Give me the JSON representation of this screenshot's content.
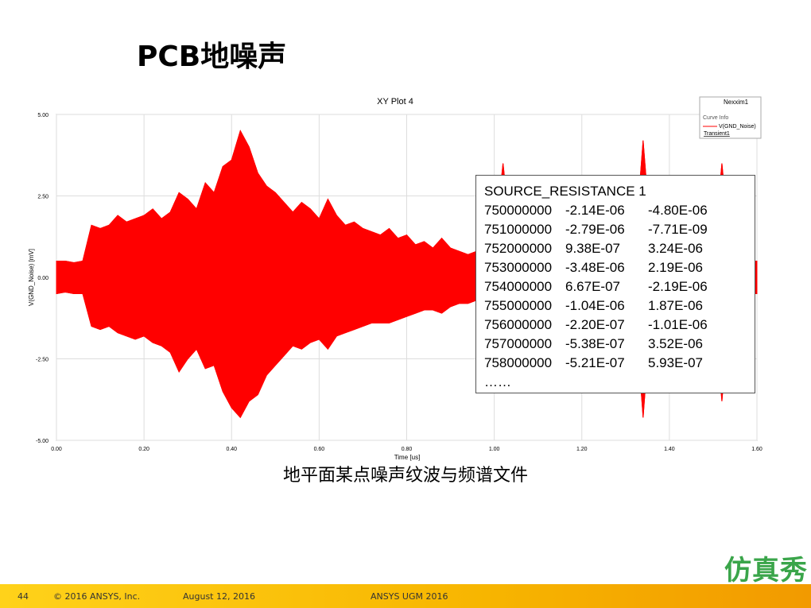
{
  "header": {
    "title": "PCB地噪声"
  },
  "chart_data": {
    "type": "area",
    "title": "XY Plot 4",
    "x_label": "Time [us]",
    "y_label": "V(GND_Noise) [mV]",
    "legend": {
      "title": "Nexxim1",
      "subtitle": "Curve Info",
      "solution": "Transient1"
    },
    "xlim": [
      0,
      1.6
    ],
    "ylim": [
      -5,
      5
    ],
    "xticks": [
      {
        "value": 0,
        "label": "0.00"
      },
      {
        "value": 0.2,
        "label": "0.20"
      },
      {
        "value": 0.4,
        "label": "0.40"
      },
      {
        "value": 0.6,
        "label": "0.60"
      },
      {
        "value": 0.8,
        "label": "0.80"
      },
      {
        "value": 1,
        "label": "1.00"
      },
      {
        "value": 1.2,
        "label": "1.20"
      },
      {
        "value": 1.4,
        "label": "1.40"
      },
      {
        "value": 1.6,
        "label": "1.60"
      }
    ],
    "yticks": [
      {
        "value": 5,
        "label": "5.00"
      },
      {
        "value": 2.5,
        "label": "2.50"
      },
      {
        "value": 0,
        "label": "0.00"
      },
      {
        "value": -2.5,
        "label": "-2.50"
      },
      {
        "value": -5,
        "label": "-5.00"
      }
    ],
    "grid": true,
    "x": [
      0,
      0.02,
      0.04,
      0.06,
      0.08,
      0.1,
      0.12,
      0.14,
      0.16,
      0.18,
      0.2,
      0.22,
      0.24,
      0.26,
      0.28,
      0.3,
      0.32,
      0.34,
      0.36,
      0.38,
      0.4,
      0.42,
      0.44,
      0.46,
      0.48,
      0.5,
      0.52,
      0.54,
      0.56,
      0.58,
      0.6,
      0.62,
      0.64,
      0.66,
      0.68,
      0.7,
      0.72,
      0.74,
      0.76,
      0.78,
      0.8,
      0.82,
      0.84,
      0.86,
      0.88,
      0.9,
      0.92,
      0.94,
      0.96,
      0.98,
      1,
      1.02,
      1.04,
      1.06,
      1.08,
      1.1,
      1.12,
      1.14,
      1.16,
      1.18,
      1.2,
      1.22,
      1.24,
      1.26,
      1.28,
      1.3,
      1.32,
      1.34,
      1.36,
      1.38,
      1.4,
      1.42,
      1.44,
      1.46,
      1.48,
      1.5,
      1.52,
      1.54,
      1.56,
      1.58,
      1.6
    ],
    "series": [
      {
        "name": "V(GND_Noise)",
        "color": "#ff0000",
        "high": [
          0.5,
          0.5,
          0.45,
          0.5,
          1.6,
          1.5,
          1.6,
          1.9,
          1.7,
          1.8,
          1.9,
          2.1,
          1.8,
          2.0,
          2.6,
          2.4,
          2.1,
          2.9,
          2.6,
          3.4,
          3.6,
          4.5,
          4.0,
          3.2,
          2.8,
          2.6,
          2.3,
          2.0,
          2.3,
          2.1,
          1.8,
          2.4,
          1.9,
          1.6,
          1.7,
          1.5,
          1.4,
          1.3,
          1.5,
          1.2,
          1.3,
          1.0,
          1.1,
          0.9,
          1.2,
          0.9,
          0.8,
          0.7,
          0.8,
          0.7,
          0.9,
          3.5,
          1.0,
          0.8,
          0.7,
          0.6,
          1.0,
          0.8,
          0.7,
          0.6,
          0.6,
          0.7,
          0.6,
          0.5,
          0.6,
          0.5,
          0.7,
          4.2,
          0.8,
          0.7,
          0.6,
          0.5,
          0.6,
          0.5,
          0.5,
          0.6,
          3.5,
          0.6,
          0.5,
          0.5,
          0.5
        ],
        "low": [
          -0.5,
          -0.45,
          -0.5,
          -0.5,
          -1.5,
          -1.6,
          -1.5,
          -1.7,
          -1.8,
          -1.9,
          -1.8,
          -2.0,
          -2.1,
          -2.3,
          -2.9,
          -2.5,
          -2.2,
          -2.8,
          -2.7,
          -3.5,
          -4.0,
          -4.3,
          -3.8,
          -3.6,
          -3.0,
          -2.7,
          -2.4,
          -2.1,
          -2.2,
          -2.0,
          -1.9,
          -2.2,
          -1.8,
          -1.7,
          -1.6,
          -1.5,
          -1.4,
          -1.4,
          -1.4,
          -1.3,
          -1.2,
          -1.1,
          -1.0,
          -1.0,
          -1.1,
          -0.9,
          -0.8,
          -0.8,
          -0.7,
          -0.7,
          -0.8,
          -3.2,
          -0.9,
          -0.8,
          -0.7,
          -0.6,
          -0.9,
          -0.7,
          -0.7,
          -0.6,
          -0.6,
          -0.6,
          -0.6,
          -0.5,
          -0.6,
          -0.5,
          -0.6,
          -4.3,
          -0.7,
          -0.6,
          -0.6,
          -0.5,
          -0.6,
          -0.5,
          -0.5,
          -0.6,
          -3.8,
          -0.5,
          -0.5,
          -0.5,
          -0.5
        ]
      }
    ]
  },
  "table": {
    "title": "SOURCE_RESISTANCE 1",
    "rows": [
      [
        "750000000",
        "-2.14E-06",
        "-4.80E-06"
      ],
      [
        "751000000",
        "-2.79E-06",
        "-7.71E-09"
      ],
      [
        "752000000",
        "9.38E-07",
        "3.24E-06"
      ],
      [
        "753000000",
        "-3.48E-06",
        "2.19E-06"
      ],
      [
        "754000000",
        "6.67E-07",
        "-2.19E-06"
      ],
      [
        "755000000",
        "-1.04E-06",
        "1.87E-06"
      ],
      [
        "756000000",
        "-2.20E-07",
        "-1.01E-06"
      ],
      [
        "757000000",
        "-5.38E-07",
        "3.52E-06"
      ],
      [
        "758000000",
        "-5.21E-07",
        "5.93E-07"
      ]
    ],
    "ellipsis": "……"
  },
  "caption": "地平面某点噪声纹波与频谱文件",
  "footer": {
    "page": "44",
    "copyright": "© 2016 ANSYS, Inc.",
    "date": "August 12, 2016",
    "event": "ANSYS UGM 2016"
  },
  "logo": "仿真秀"
}
